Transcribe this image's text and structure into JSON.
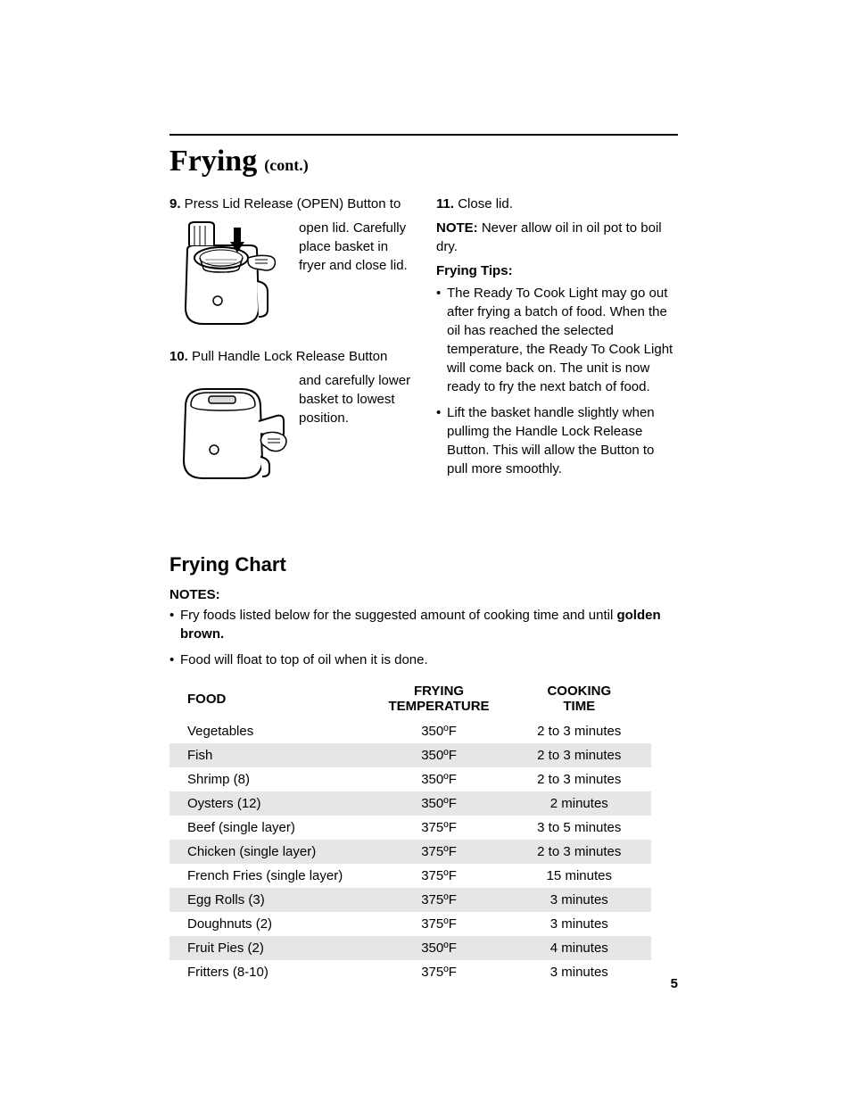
{
  "header": {
    "title": "Frying",
    "suffix": "(cont.)"
  },
  "leftColumn": {
    "step9": {
      "num": "9.",
      "lead": " Press Lid Release (OPEN) Button to",
      "aside": "open lid. Carefully place basket in fryer and close lid."
    },
    "step10": {
      "num": "10.",
      "lead": " Pull Handle Lock Release Button",
      "aside": "and carefully lower basket to lowest position."
    }
  },
  "rightColumn": {
    "step11": {
      "num": "11.",
      "text": " Close lid."
    },
    "noteLabel": "NOTE:",
    "noteText": " Never allow oil in oil pot to boil dry.",
    "tipsHeading": "Frying Tips:",
    "tips": [
      "The Ready To Cook Light may go out after frying a batch of food. When the oil has reached the selected temperature, the Ready To Cook Light will come back on. The unit is now ready to fry the next batch of food.",
      "Lift the basket handle slightly when pullimg the Handle Lock Release Button. This will allow the Button to pull more smoothly."
    ]
  },
  "chartSection": {
    "heading": "Frying Chart",
    "notesLabel": "NOTES:",
    "notes": [
      {
        "pre": "Fry foods listed below for the suggested amount of cooking time and until ",
        "bold": "golden brown."
      },
      {
        "pre": "Food will float to top of oil when it is done.",
        "bold": ""
      }
    ],
    "table": {
      "columns": [
        "FOOD",
        "FRYING TEMPERATURE",
        "COOKING TIME"
      ],
      "col2_line1": "FRYING",
      "col2_line2": "TEMPERATURE",
      "col3_line1": "COOKING",
      "col3_line2": "TIME",
      "rows": [
        {
          "food": "Vegetables",
          "temp": "350ºF",
          "time": "2 to 3 minutes",
          "shaded": false
        },
        {
          "food": "Fish",
          "temp": "350ºF",
          "time": "2 to 3 minutes",
          "shaded": true
        },
        {
          "food": "Shrimp (8)",
          "temp": "350ºF",
          "time": "2 to 3 minutes",
          "shaded": false
        },
        {
          "food": "Oysters (12)",
          "temp": "350ºF",
          "time": "2 minutes",
          "shaded": true
        },
        {
          "food": "Beef (single layer)",
          "temp": "375ºF",
          "time": "3 to 5 minutes",
          "shaded": false
        },
        {
          "food": "Chicken (single layer)",
          "temp": "375ºF",
          "time": "2 to 3 minutes",
          "shaded": true
        },
        {
          "food": "French Fries (single layer)",
          "temp": "375ºF",
          "time": "15 minutes",
          "shaded": false
        },
        {
          "food": "Egg Rolls (3)",
          "temp": "375ºF",
          "time": "3 minutes",
          "shaded": true
        },
        {
          "food": "Doughnuts (2)",
          "temp": "375ºF",
          "time": "3 minutes",
          "shaded": false
        },
        {
          "food": "Fruit Pies (2)",
          "temp": "350ºF",
          "time": "4 minutes",
          "shaded": true
        },
        {
          "food": "Fritters (8-10)",
          "temp": "375ºF",
          "time": "3 minutes",
          "shaded": false
        }
      ],
      "header_bg": "#ffffff",
      "shaded_bg": "#e6e6e6",
      "font_size": 15
    }
  },
  "pageNumber": "5",
  "colors": {
    "text": "#000000",
    "background": "#ffffff",
    "rule": "#000000",
    "shaded_row": "#e6e6e6"
  }
}
